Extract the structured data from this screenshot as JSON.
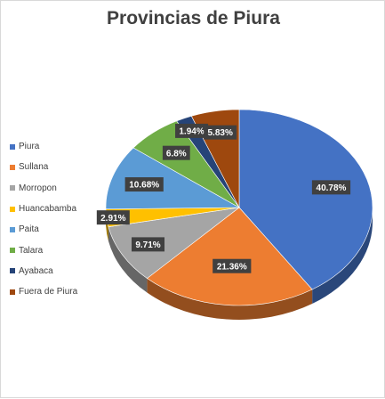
{
  "chart_data": {
    "type": "pie",
    "title": "Provincias de Piura",
    "categories": [
      "Piura",
      "Sullana",
      "Morropon",
      "Huancabamba",
      "Paita",
      "Talara",
      "Ayabaca",
      "Fuera de Piura"
    ],
    "values": [
      40.78,
      21.36,
      9.71,
      2.91,
      10.68,
      6.8,
      1.94,
      5.83
    ],
    "data_labels": [
      "40.78%",
      "21.36%",
      "9.71%",
      "2.91%",
      "10.68%",
      "6.8%",
      "1.94%",
      "5.83%"
    ],
    "colors": [
      "#4472c4",
      "#ed7d31",
      "#a5a5a5",
      "#ffc000",
      "#5b9bd5",
      "#70ad47",
      "#264478",
      "#9e480e"
    ],
    "style": "3d-pie",
    "legend_position": "left"
  }
}
